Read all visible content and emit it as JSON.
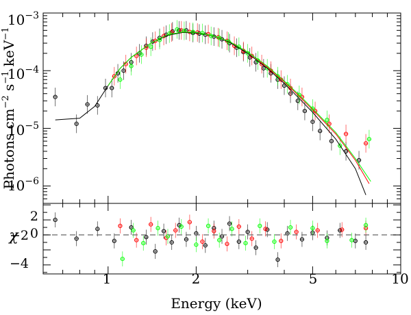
{
  "chart_data": [
    {
      "type": "scatter",
      "panel": "spectrum",
      "title": "",
      "xlabel": "Energy (keV)",
      "ylabel_parts": [
        "Photons cm",
        "−2",
        " s",
        "−1",
        " keV",
        "−1"
      ],
      "xscale": "log",
      "yscale": "log",
      "xlim": [
        0.6,
        10
      ],
      "ylim": [
        5e-07,
        0.001
      ],
      "x_ticks": [
        {
          "value": 1,
          "label": "1"
        },
        {
          "value": 2,
          "label": "2"
        },
        {
          "value": 5,
          "label": "5"
        },
        {
          "value": 10,
          "label": "10"
        }
      ],
      "y_ticks": [
        {
          "value": 1e-06,
          "base": "10",
          "exp": "−6"
        },
        {
          "value": 1e-05,
          "base": "10",
          "exp": "−5"
        },
        {
          "value": 0.0001,
          "base": "10",
          "exp": "−4"
        },
        {
          "value": 0.001,
          "base": "10",
          "exp": "−3"
        }
      ],
      "series": [
        {
          "name": "black data",
          "color": "#000000",
          "points": [
            [
              0.66,
              3.5e-05
            ],
            [
              0.78,
              1.2e-05
            ],
            [
              0.85,
              2.6e-05
            ],
            [
              0.92,
              2.5e-05
            ],
            [
              0.98,
              5e-05
            ],
            [
              1.03,
              5e-05
            ],
            [
              1.08,
              9e-05
            ],
            [
              1.13,
              0.0001
            ],
            [
              1.2,
              0.00014
            ],
            [
              1.28,
              0.0002
            ],
            [
              1.35,
              0.00027
            ],
            [
              1.42,
              0.00032
            ],
            [
              1.5,
              0.00037
            ],
            [
              1.58,
              0.00042
            ],
            [
              1.66,
              0.00048
            ],
            [
              1.75,
              0.0005
            ],
            [
              1.85,
              0.0005
            ],
            [
              1.95,
              0.00045
            ],
            [
              2.05,
              0.00044
            ],
            [
              2.15,
              0.00042
            ],
            [
              2.3,
              0.00039
            ],
            [
              2.45,
              0.00035
            ],
            [
              2.6,
              0.0003
            ],
            [
              2.75,
              0.00025
            ],
            [
              2.9,
              0.00021
            ],
            [
              3.05,
              0.00017
            ],
            [
              3.2,
              0.00014
            ],
            [
              3.4,
              0.00011
            ],
            [
              3.6,
              9e-05
            ],
            [
              3.8,
              7e-05
            ],
            [
              4.0,
              5.5e-05
            ],
            [
              4.2,
              4e-05
            ],
            [
              4.45,
              3e-05
            ],
            [
              4.7,
              2e-05
            ],
            [
              5.0,
              1.3e-05
            ],
            [
              5.3,
              9e-06
            ],
            [
              5.8,
              6e-06
            ],
            [
              6.5,
              4e-06
            ],
            [
              7.2,
              2.8e-06
            ]
          ]
        },
        {
          "name": "red data",
          "color": "#ff0000",
          "points": [
            [
              1.05,
              8e-05
            ],
            [
              1.15,
              0.00013
            ],
            [
              1.25,
              0.00018
            ],
            [
              1.35,
              0.00025
            ],
            [
              1.45,
              0.00033
            ],
            [
              1.55,
              0.0004
            ],
            [
              1.65,
              0.00046
            ],
            [
              1.78,
              0.0005
            ],
            [
              1.9,
              0.00047
            ],
            [
              2.02,
              0.00046
            ],
            [
              2.2,
              0.00043
            ],
            [
              2.38,
              0.00038
            ],
            [
              2.55,
              0.00033
            ],
            [
              2.7,
              0.00027
            ],
            [
              2.9,
              0.00022
            ],
            [
              3.1,
              0.00018
            ],
            [
              3.35,
              0.00013
            ],
            [
              3.6,
              0.0001
            ],
            [
              3.9,
              7e-05
            ],
            [
              4.2,
              5e-05
            ],
            [
              4.6,
              3.5e-05
            ],
            [
              5.1,
              2e-05
            ],
            [
              5.7,
              1.2e-05
            ],
            [
              6.5,
              8e-06
            ],
            [
              7.6,
              5.5e-06
            ]
          ]
        },
        {
          "name": "green data",
          "color": "#00ff00",
          "points": [
            [
              1.1,
              7e-05
            ],
            [
              1.2,
              0.00012
            ],
            [
              1.3,
              0.00019
            ],
            [
              1.4,
              0.00026
            ],
            [
              1.5,
              0.00034
            ],
            [
              1.62,
              0.00044
            ],
            [
              1.72,
              0.00052
            ],
            [
              1.82,
              0.00049
            ],
            [
              1.95,
              0.00047
            ],
            [
              2.1,
              0.00045
            ],
            [
              2.25,
              0.0004
            ],
            [
              2.4,
              0.00037
            ],
            [
              2.58,
              0.00032
            ],
            [
              2.8,
              0.00026
            ],
            [
              3.0,
              0.0002
            ],
            [
              3.25,
              0.00015
            ],
            [
              3.5,
              0.00011
            ],
            [
              3.8,
              8e-05
            ],
            [
              4.1,
              5.8e-05
            ],
            [
              4.5,
              3.8e-05
            ],
            [
              5.0,
              2.2e-05
            ],
            [
              5.6,
              1.4e-05
            ],
            [
              6.2,
              5e-06
            ],
            [
              7.8,
              6.5e-06
            ]
          ]
        }
      ],
      "models": [
        {
          "name": "black model",
          "color": "#000000",
          "points": [
            [
              0.66,
              1.4e-05
            ],
            [
              0.8,
              1.5e-05
            ],
            [
              0.9,
              2.4e-05
            ],
            [
              1.0,
              5.5e-05
            ],
            [
              1.1,
              0.00011
            ],
            [
              1.2,
              0.00017
            ],
            [
              1.4,
              0.0003
            ],
            [
              1.6,
              0.00041
            ],
            [
              1.8,
              0.00046
            ],
            [
              2.0,
              0.00045
            ],
            [
              2.3,
              0.0004
            ],
            [
              2.6,
              0.00031
            ],
            [
              3.0,
              0.0002
            ],
            [
              3.5,
              0.00011
            ],
            [
              4.0,
              6e-05
            ],
            [
              4.5,
              3.3e-05
            ],
            [
              5.0,
              1.9e-05
            ],
            [
              6.0,
              6.5e-06
            ],
            [
              7.0,
              2e-06
            ],
            [
              7.6,
              7e-07
            ]
          ]
        },
        {
          "name": "red model",
          "color": "#ff0000",
          "points": [
            [
              1.0,
              5.5e-05
            ],
            [
              1.1,
              0.00011
            ],
            [
              1.2,
              0.00017
            ],
            [
              1.4,
              0.0003
            ],
            [
              1.6,
              0.00042
            ],
            [
              1.8,
              0.00047
            ],
            [
              2.0,
              0.00046
            ],
            [
              2.3,
              0.0004
            ],
            [
              2.6,
              0.00032
            ],
            [
              3.0,
              0.00021
            ],
            [
              3.5,
              0.000115
            ],
            [
              4.0,
              6.4e-05
            ],
            [
              4.5,
              3.6e-05
            ],
            [
              5.0,
              2.1e-05
            ],
            [
              6.0,
              8e-06
            ],
            [
              7.0,
              2.8e-06
            ],
            [
              7.8,
              1.1e-06
            ]
          ]
        },
        {
          "name": "green model",
          "color": "#00ff00",
          "points": [
            [
              1.0,
              5.5e-05
            ],
            [
              1.1,
              0.00011
            ],
            [
              1.2,
              0.00017
            ],
            [
              1.4,
              0.0003
            ],
            [
              1.6,
              0.00042
            ],
            [
              1.8,
              0.00047
            ],
            [
              2.0,
              0.00046
            ],
            [
              2.3,
              0.0004
            ],
            [
              2.6,
              0.00032
            ],
            [
              3.0,
              0.00021
            ],
            [
              3.5,
              0.00012
            ],
            [
              4.0,
              6.6e-05
            ],
            [
              4.5,
              3.8e-05
            ],
            [
              5.0,
              2.2e-05
            ],
            [
              6.0,
              8.5e-06
            ],
            [
              7.0,
              3e-06
            ],
            [
              7.9,
              1.2e-06
            ]
          ]
        }
      ]
    },
    {
      "type": "scatter",
      "panel": "residuals",
      "ylabel": "χ",
      "xscale": "log",
      "xlim": [
        0.6,
        10
      ],
      "ylim": [
        -5.2,
        4.2
      ],
      "y_ticks": [
        {
          "value": -4,
          "label": "−4"
        },
        {
          "value": -2,
          "label": "−2"
        },
        {
          "value": 0,
          "label": "0"
        },
        {
          "value": 2,
          "label": "2"
        }
      ],
      "zero_line": 0,
      "series": [
        {
          "name": "black residuals",
          "color": "#000000",
          "points": [
            [
              0.66,
              2.0
            ],
            [
              0.78,
              -0.5
            ],
            [
              0.92,
              0.8
            ],
            [
              1.05,
              -0.8
            ],
            [
              1.2,
              1.0
            ],
            [
              1.35,
              -0.3
            ],
            [
              1.45,
              -2.2
            ],
            [
              1.55,
              0.5
            ],
            [
              1.65,
              -1.0
            ],
            [
              1.75,
              1.3
            ],
            [
              1.85,
              -0.6
            ],
            [
              2.0,
              0.2
            ],
            [
              2.15,
              -1.4
            ],
            [
              2.3,
              0.9
            ],
            [
              2.45,
              -0.2
            ],
            [
              2.6,
              1.5
            ],
            [
              2.8,
              -0.9
            ],
            [
              3.0,
              0.4
            ],
            [
              3.2,
              -1.7
            ],
            [
              3.5,
              0.7
            ],
            [
              3.8,
              -3.3
            ],
            [
              4.1,
              0.2
            ],
            [
              4.6,
              -0.6
            ],
            [
              5.0,
              0.3
            ],
            [
              5.6,
              -0.4
            ],
            [
              6.2,
              0.6
            ],
            [
              7.0,
              -0.8
            ],
            [
              7.6,
              -1.0
            ]
          ]
        },
        {
          "name": "red residuals",
          "color": "#ff0000",
          "points": [
            [
              1.1,
              1.2
            ],
            [
              1.25,
              -0.7
            ],
            [
              1.4,
              1.4
            ],
            [
              1.58,
              -0.4
            ],
            [
              1.7,
              0.6
            ],
            [
              1.9,
              1.7
            ],
            [
              2.1,
              -0.9
            ],
            [
              2.3,
              0.5
            ],
            [
              2.55,
              -1.2
            ],
            [
              2.8,
              1.1
            ],
            [
              3.1,
              -0.5
            ],
            [
              3.45,
              0.8
            ],
            [
              3.9,
              -0.8
            ],
            [
              4.4,
              0.4
            ],
            [
              5.2,
              0.6
            ],
            [
              6.3,
              0.7
            ],
            [
              7.6,
              0.9
            ]
          ]
        },
        {
          "name": "green residuals",
          "color": "#00ff00",
          "points": [
            [
              1.12,
              -3.2
            ],
            [
              1.22,
              0.6
            ],
            [
              1.32,
              -1.1
            ],
            [
              1.48,
              0.9
            ],
            [
              1.6,
              -0.2
            ],
            [
              1.78,
              1.1
            ],
            [
              2.0,
              -1.3
            ],
            [
              2.2,
              1.2
            ],
            [
              2.4,
              -0.7
            ],
            [
              2.65,
              0.8
            ],
            [
              2.95,
              -1.1
            ],
            [
              3.3,
              1.2
            ],
            [
              3.7,
              -0.9
            ],
            [
              4.2,
              1.0
            ],
            [
              5.0,
              0.9
            ],
            [
              5.6,
              -0.8
            ],
            [
              6.8,
              -0.7
            ],
            [
              7.6,
              1.3
            ]
          ]
        }
      ]
    }
  ]
}
